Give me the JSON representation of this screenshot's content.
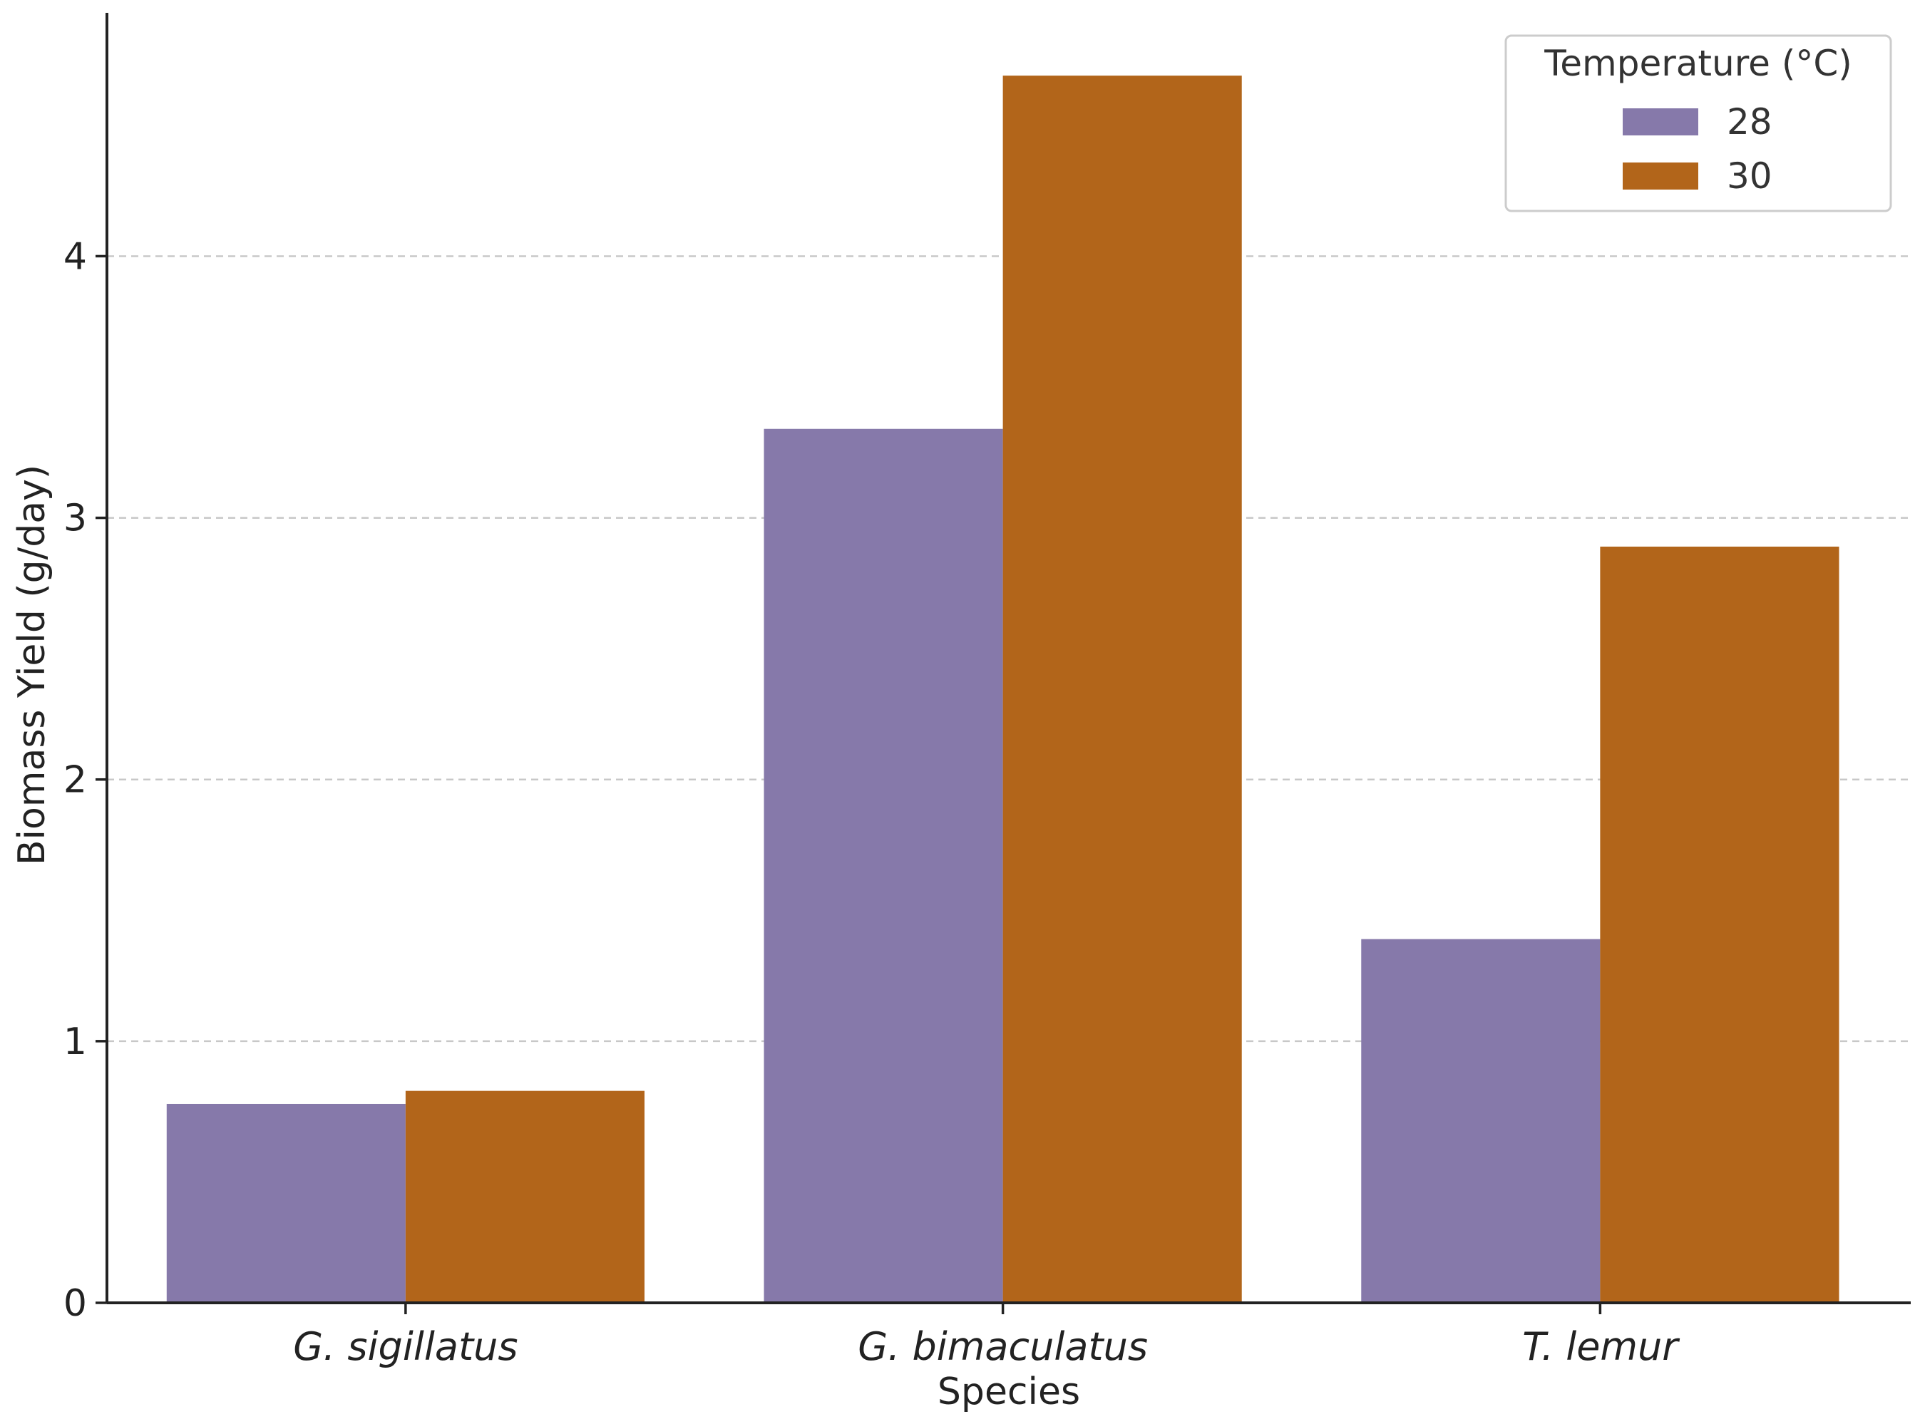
{
  "chart_data": {
    "type": "bar",
    "title": "",
    "xlabel": "Species",
    "ylabel": "Biomass Yield (g/day)",
    "categories": [
      "G.  sigillatus",
      "G.  bimaculatus",
      "T.  lemur"
    ],
    "series": [
      {
        "name": "28",
        "color": "#8679AA",
        "values": [
          0.76,
          3.34,
          1.39
        ]
      },
      {
        "name": "30",
        "color": "#B2651A",
        "values": [
          0.81,
          4.69,
          2.89
        ]
      }
    ],
    "ylim": [
      0,
      4.93
    ],
    "yticks": [
      0,
      1,
      2,
      3,
      4
    ],
    "ytick_labels": [
      "0",
      "1",
      "2",
      "3",
      "4"
    ],
    "grid": "y-dashed",
    "legend": {
      "title": "Temperature (°C)",
      "placement": "top-right"
    }
  }
}
